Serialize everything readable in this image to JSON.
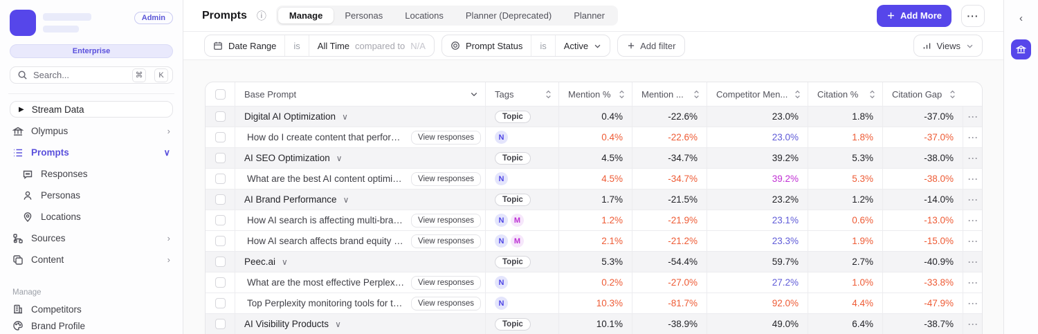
{
  "colors": {
    "accent": "#5646ea",
    "orange": "#ee5b35",
    "indigo": "#5f5bd8",
    "magenta": "#c02fd4",
    "group_row_bg": "#f4f4f6"
  },
  "icons": {
    "play": "▶",
    "info": "ⓘ",
    "more": "···",
    "chevron_down": "∨",
    "chevron_right": "›",
    "chevron_left": "‹",
    "row_menu": "···"
  },
  "sidebar": {
    "admin_label": "Admin",
    "plan_label": "Enterprise",
    "search": {
      "placeholder": "Search...",
      "key1": "⌘",
      "key2": "K"
    },
    "stream_label": "Stream Data",
    "nav": [
      {
        "label": "Olympus"
      },
      {
        "label": "Prompts"
      },
      {
        "label": "Responses"
      },
      {
        "label": "Personas"
      },
      {
        "label": "Locations"
      },
      {
        "label": "Sources"
      },
      {
        "label": "Content"
      }
    ],
    "manage_label": "Manage",
    "manage_nav": [
      {
        "label": "Competitors"
      },
      {
        "label": "Brand Profile"
      }
    ]
  },
  "header": {
    "title": "Prompts",
    "tabs": [
      {
        "label": "Manage",
        "active": true
      },
      {
        "label": "Personas",
        "active": false
      },
      {
        "label": "Locations",
        "active": false
      },
      {
        "label": "Planner (Deprecated)",
        "active": false
      },
      {
        "label": "Planner",
        "active": false
      }
    ],
    "add_more_label": "Add More"
  },
  "filters": {
    "date_range": {
      "name": "Date Range",
      "op": "is",
      "value": "All Time",
      "compare_label": "compared to",
      "compare_value": "N/A"
    },
    "prompt_status": {
      "name": "Prompt Status",
      "op": "is",
      "value": "Active"
    },
    "add_filter_label": "Add filter",
    "views_label": "Views"
  },
  "table": {
    "columns": [
      "Base Prompt",
      "Tags",
      "Mention %",
      "Mention ...",
      "Competitor Men...",
      "Citation %",
      "Citation Gap"
    ],
    "view_responses_label": "View responses",
    "tag_styles": {
      "Topic": {
        "style": "outline"
      },
      "N": {
        "bg": "#e4e5fc",
        "fg": "#4f46e5"
      },
      "M": {
        "bg": "#f6e7fb",
        "fg": "#bc30d4"
      }
    },
    "rows": [
      {
        "type": "group",
        "prompt": "Digital AI Optimization",
        "tags": [
          "Topic"
        ],
        "mention": "0.4%",
        "mention_change": "-22.6%",
        "competitor_mention": "23.0%",
        "citation": "1.8%",
        "citation_gap": "-37.0%",
        "value_color": "dark",
        "competitor_color": "dark"
      },
      {
        "type": "prompt",
        "prompt": "How do I create content that performs w...",
        "tags": [
          "N"
        ],
        "mention": "0.4%",
        "mention_change": "-22.6%",
        "competitor_mention": "23.0%",
        "citation": "1.8%",
        "citation_gap": "-37.0%",
        "value_color": "orange",
        "competitor_color": "indigo"
      },
      {
        "type": "group",
        "prompt": "AI SEO Optimization",
        "tags": [
          "Topic"
        ],
        "mention": "4.5%",
        "mention_change": "-34.7%",
        "competitor_mention": "39.2%",
        "citation": "5.3%",
        "citation_gap": "-38.0%",
        "value_color": "dark",
        "competitor_color": "dark"
      },
      {
        "type": "prompt",
        "prompt": "What are the best AI content optimizatio...",
        "tags": [
          "N"
        ],
        "mention": "4.5%",
        "mention_change": "-34.7%",
        "competitor_mention": "39.2%",
        "citation": "5.3%",
        "citation_gap": "-38.0%",
        "value_color": "orange",
        "competitor_color": "magenta"
      },
      {
        "type": "group",
        "prompt": "AI Brand Performance",
        "tags": [
          "Topic"
        ],
        "mention": "1.7%",
        "mention_change": "-21.5%",
        "competitor_mention": "23.2%",
        "citation": "1.2%",
        "citation_gap": "-14.0%",
        "value_color": "dark",
        "competitor_color": "dark"
      },
      {
        "type": "prompt",
        "prompt": "How AI search is affecting multi-brand p...",
        "tags": [
          "N",
          "M"
        ],
        "mention": "1.2%",
        "mention_change": "-21.9%",
        "competitor_mention": "23.1%",
        "citation": "0.6%",
        "citation_gap": "-13.0%",
        "value_color": "orange",
        "competitor_color": "indigo"
      },
      {
        "type": "prompt",
        "prompt": "How AI search affects brand equity dyna...",
        "tags": [
          "N",
          "M"
        ],
        "mention": "2.1%",
        "mention_change": "-21.2%",
        "competitor_mention": "23.3%",
        "citation": "1.9%",
        "citation_gap": "-15.0%",
        "value_color": "orange",
        "competitor_color": "indigo"
      },
      {
        "type": "group",
        "prompt": "Peec.ai",
        "tags": [
          "Topic"
        ],
        "mention": "5.3%",
        "mention_change": "-54.4%",
        "competitor_mention": "59.7%",
        "citation": "2.7%",
        "citation_gap": "-40.9%",
        "value_color": "dark",
        "competitor_color": "dark"
      },
      {
        "type": "prompt",
        "prompt": "What are the most effective Perplexity vi...",
        "tags": [
          "N"
        ],
        "mention": "0.2%",
        "mention_change": "-27.0%",
        "competitor_mention": "27.2%",
        "citation": "1.0%",
        "citation_gap": "-33.8%",
        "value_color": "orange",
        "competitor_color": "indigo"
      },
      {
        "type": "prompt",
        "prompt": "Top Perplexity monitoring tools for track...",
        "tags": [
          "N"
        ],
        "mention": "10.3%",
        "mention_change": "-81.7%",
        "competitor_mention": "92.0%",
        "citation": "4.4%",
        "citation_gap": "-47.9%",
        "value_color": "orange",
        "competitor_color": "orange"
      },
      {
        "type": "group",
        "prompt": "AI Visibility Products",
        "tags": [
          "Topic"
        ],
        "mention": "10.1%",
        "mention_change": "-38.9%",
        "competitor_mention": "49.0%",
        "citation": "6.4%",
        "citation_gap": "-38.7%",
        "value_color": "dark",
        "competitor_color": "dark"
      }
    ]
  }
}
